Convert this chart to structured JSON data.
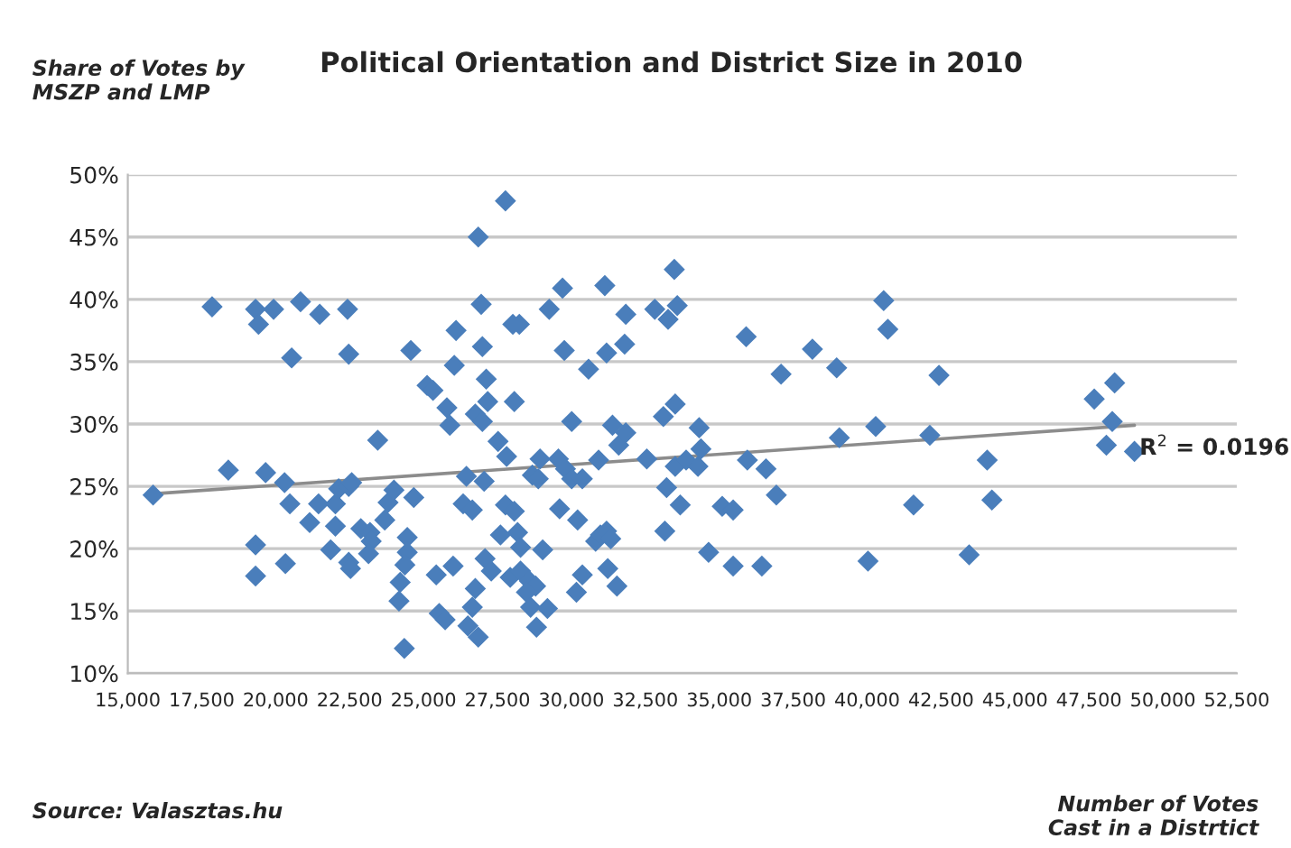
{
  "chart_data": {
    "type": "scatter",
    "title": "Political Orientation and District Size in 2010",
    "ylabel": "Share of Votes by\nMSZP and LMP",
    "xlabel": "Number of Votes\nCast in a Distrtict",
    "annotations": [
      "Source: Valasztas.hu",
      {
        "text": "R$^{2}$ = 0.0196",
        "x": 49040,
        "y": 29.9
      }
    ],
    "series": [
      {
        "color": "#4a7ebb",
        "marker": "diamond",
        "x": [
          15855,
          17850,
          18400,
          19320,
          19420,
          19930,
          19320,
          19320,
          19660,
          20330,
          20300,
          20480,
          20540,
          20840,
          21150,
          21450,
          21490,
          21860,
          22020,
          22020,
          22130,
          22430,
          22470,
          22470,
          22570,
          22470,
          22530,
          22880,
          23190,
          23230,
          23140,
          23450,
          23690,
          23800,
          24000,
          24450,
          24450,
          24370,
          24210,
          24170,
          24350,
          24570,
          24670,
          25120,
          25320,
          25430,
          25530,
          25730,
          25790,
          25890,
          26040,
          26100,
          26000,
          26450,
          26340,
          26650,
          26500,
          26650,
          26750,
          26850,
          26850,
          26950,
          26990,
          26750,
          26990,
          27050,
          27120,
          27170,
          27080,
          27290,
          27770,
          27520,
          27810,
          28020,
          28240,
          28070,
          27600,
          27930,
          27770,
          28070,
          28180,
          28280,
          28280,
          28580,
          28790,
          28480,
          28620,
          29190,
          28820,
          29030,
          28940,
          28680,
          28880,
          29250,
          29700,
          29760,
          30010,
          29560,
          29800,
          30010,
          30370,
          29600,
          30210,
          30370,
          30170,
          30580,
          31130,
          31190,
          31800,
          31840,
          31390,
          31600,
          31840,
          30920,
          30820,
          30980,
          31190,
          31330,
          31230,
          31540,
          32820,
          33270,
          33480,
          33580,
          33110,
          33510,
          32550,
          33220,
          33510,
          33880,
          33680,
          33160,
          34320,
          34380,
          34280,
          34640,
          35470,
          36440,
          35100,
          35470,
          35910,
          35950,
          36580,
          36930,
          37090,
          38150,
          38970,
          39060,
          40290,
          40030,
          40560,
          40700,
          41570,
          42120,
          42430,
          43450,
          44060,
          44220,
          47680,
          48370,
          48290,
          48090,
          49040
        ],
        "values": [
          24.3,
          39.4,
          26.3,
          39.2,
          38.0,
          39.2,
          20.3,
          17.8,
          26.1,
          18.8,
          25.3,
          23.6,
          35.3,
          39.8,
          22.1,
          23.6,
          38.8,
          19.9,
          21.8,
          23.6,
          24.8,
          39.2,
          35.6,
          25.0,
          25.3,
          18.9,
          18.4,
          21.6,
          21.3,
          20.6,
          19.6,
          28.7,
          22.3,
          23.7,
          24.7,
          20.9,
          19.7,
          18.7,
          17.3,
          15.8,
          12.0,
          35.9,
          24.1,
          33.1,
          32.7,
          17.9,
          14.8,
          14.3,
          31.3,
          29.9,
          34.7,
          37.5,
          18.6,
          25.8,
          23.6,
          23.1,
          13.8,
          15.3,
          16.8,
          12.9,
          45.0,
          39.6,
          36.2,
          30.8,
          30.2,
          25.4,
          33.6,
          31.8,
          19.2,
          18.2,
          47.9,
          28.6,
          27.4,
          38.0,
          38.0,
          31.8,
          21.1,
          17.7,
          23.5,
          23.0,
          21.3,
          20.1,
          18.2,
          17.4,
          17.0,
          16.5,
          15.3,
          15.2,
          13.7,
          19.9,
          27.2,
          25.9,
          25.6,
          39.2,
          40.9,
          35.9,
          30.2,
          27.2,
          26.4,
          25.6,
          25.6,
          23.2,
          22.3,
          17.9,
          16.5,
          34.4,
          41.1,
          35.7,
          36.4,
          38.8,
          29.9,
          28.3,
          29.3,
          27.1,
          20.6,
          21.1,
          21.4,
          20.8,
          18.4,
          17.0,
          39.2,
          38.4,
          42.4,
          39.5,
          30.6,
          31.6,
          27.2,
          24.9,
          26.6,
          27.1,
          23.5,
          21.4,
          29.7,
          28.0,
          26.6,
          19.7,
          18.6,
          18.6,
          23.4,
          23.1,
          37.0,
          27.1,
          26.4,
          24.3,
          34.0,
          36.0,
          34.5,
          28.9,
          29.8,
          19.0,
          39.9,
          37.6,
          23.5,
          29.1,
          33.9,
          19.5,
          27.1,
          23.9,
          32.0,
          33.3,
          30.2,
          28.3,
          27.8
        ]
      },
      {
        "type": "line",
        "color": "#8c8c8c",
        "x": [
          15855,
          49040
        ],
        "values": [
          24.4,
          29.9
        ]
      }
    ],
    "xlim": [
      15000,
      52500
    ],
    "xticks": [
      {
        "value": 15000,
        "label": "15,000"
      },
      {
        "value": 17500,
        "label": "17,500"
      },
      {
        "value": 20000,
        "label": "20,000"
      },
      {
        "value": 22500,
        "label": "22,500"
      },
      {
        "value": 25000,
        "label": "25,000"
      },
      {
        "value": 27500,
        "label": "27,500"
      },
      {
        "value": 30000,
        "label": "30,000"
      },
      {
        "value": 32500,
        "label": "32,500"
      },
      {
        "value": 35000,
        "label": "35,000"
      },
      {
        "value": 37500,
        "label": "37,500"
      },
      {
        "value": 40000,
        "label": "40,000"
      },
      {
        "value": 42500,
        "label": "42,500"
      },
      {
        "value": 45000,
        "label": "45,000"
      },
      {
        "value": 47500,
        "label": "47,500"
      },
      {
        "value": 50000,
        "label": "50,000"
      },
      {
        "value": 52500,
        "label": "52,500"
      }
    ],
    "ylim": [
      10,
      50
    ],
    "yticks": [
      {
        "value": 10,
        "label": "10%"
      },
      {
        "value": 15,
        "label": "15%"
      },
      {
        "value": 20,
        "label": "20%"
      },
      {
        "value": 25,
        "label": "25%"
      },
      {
        "value": 30,
        "label": "30%"
      },
      {
        "value": 35,
        "label": "35%"
      },
      {
        "value": 40,
        "label": "40%"
      },
      {
        "value": 45,
        "label": "45%"
      },
      {
        "value": 50,
        "label": "50%"
      }
    ],
    "grid": "y",
    "legend": false
  }
}
